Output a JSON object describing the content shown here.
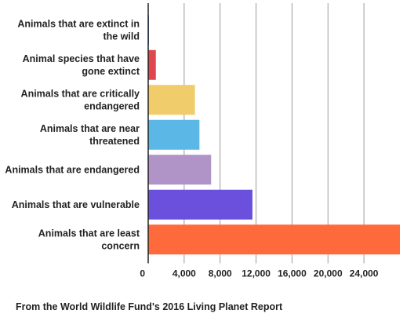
{
  "chart_data": {
    "type": "bar",
    "orientation": "horizontal",
    "categories": [
      "Animals that are extinct in the wild",
      "Animal species that have gone extinct",
      "Animals that are critically endangered",
      "Animals that are near threatened",
      "Animals that are endangered",
      "Animals that are vulnerable",
      "Animals that are least concern"
    ],
    "values": [
      68,
      850,
      5200,
      5700,
      7000,
      11600,
      28000
    ],
    "colors": [
      "#5b8ff9",
      "#e0474c",
      "#f0cc6a",
      "#5bb8e6",
      "#b094c8",
      "#6a50dc",
      "#ff6a3d"
    ],
    "xlim": [
      0,
      28000
    ],
    "xticks": [
      0,
      4000,
      8000,
      12000,
      16000,
      20000,
      24000
    ],
    "xtick_labels": [
      "0",
      "4,000",
      "8,000",
      "12,000",
      "16,000",
      "20,000",
      "24,000"
    ],
    "grid": true,
    "title": "",
    "xlabel": "",
    "ylabel": ""
  },
  "source_note": "From the World Wildlife Fund's 2016 Living Planet Report"
}
